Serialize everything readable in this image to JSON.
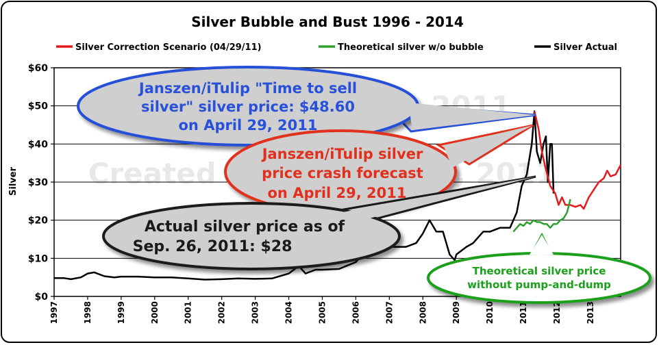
{
  "chart_data": {
    "type": "line",
    "title": "Silver Bubble and Bust 1996 - 2014",
    "ylabel": "Silver",
    "xlabel": "",
    "ylim": [
      0,
      60
    ],
    "xlim": [
      1997.0,
      2013.9
    ],
    "yticks": [
      {
        "value": 0,
        "label": "$0"
      },
      {
        "value": 10,
        "label": "$10"
      },
      {
        "value": 20,
        "label": "$20"
      },
      {
        "value": 30,
        "label": "$30"
      },
      {
        "value": 40,
        "label": "$40"
      },
      {
        "value": 50,
        "label": "$50"
      },
      {
        "value": 60,
        "label": "$60"
      }
    ],
    "xticks": [
      "1997",
      "1998",
      "1999",
      "2000",
      "2001",
      "2002",
      "2003",
      "2004",
      "2005",
      "2006",
      "2007",
      "2008",
      "2009",
      "2010",
      "2011",
      "2012",
      "2013"
    ],
    "grid": true,
    "legend_position": "top",
    "series": [
      {
        "name": "Silver Correction Scenario (04/29/11)",
        "color": "#e41a1c",
        "points": [
          [
            2011.33,
            48.6
          ],
          [
            2011.45,
            44
          ],
          [
            2011.55,
            38
          ],
          [
            2011.65,
            34
          ],
          [
            2011.8,
            29
          ],
          [
            2011.95,
            27
          ],
          [
            2012.05,
            24
          ],
          [
            2012.15,
            26
          ],
          [
            2012.25,
            24
          ],
          [
            2012.4,
            24
          ],
          [
            2012.55,
            23.5
          ],
          [
            2012.7,
            24
          ],
          [
            2012.8,
            23
          ],
          [
            2012.95,
            26
          ],
          [
            2013.1,
            28
          ],
          [
            2013.25,
            30
          ],
          [
            2013.4,
            31
          ],
          [
            2013.5,
            33
          ],
          [
            2013.6,
            31.5
          ],
          [
            2013.75,
            32
          ],
          [
            2013.9,
            34.5
          ]
        ]
      },
      {
        "name": "Theoretical silver w/o bubble",
        "color": "#2ca02c",
        "points": [
          [
            2010.7,
            17
          ],
          [
            2010.8,
            18
          ],
          [
            2010.9,
            19
          ],
          [
            2011.0,
            18.5
          ],
          [
            2011.1,
            19.5
          ],
          [
            2011.2,
            19
          ],
          [
            2011.3,
            20
          ],
          [
            2011.4,
            19.5
          ],
          [
            2011.5,
            19.5
          ],
          [
            2011.6,
            19
          ],
          [
            2011.7,
            19
          ],
          [
            2011.8,
            18
          ],
          [
            2011.9,
            19
          ],
          [
            2012.0,
            19
          ],
          [
            2012.1,
            20
          ],
          [
            2012.2,
            20.5
          ],
          [
            2012.3,
            22
          ],
          [
            2012.4,
            25.5
          ]
        ]
      },
      {
        "name": "Silver Actual",
        "color": "#000000",
        "points": [
          [
            1997.0,
            4.8
          ],
          [
            1997.3,
            4.8
          ],
          [
            1997.5,
            4.5
          ],
          [
            1997.8,
            5
          ],
          [
            1998.0,
            6
          ],
          [
            1998.2,
            6.3
          ],
          [
            1998.5,
            5.3
          ],
          [
            1998.8,
            5
          ],
          [
            1999.0,
            5.2
          ],
          [
            1999.5,
            5.2
          ],
          [
            2000.0,
            5
          ],
          [
            2000.5,
            5
          ],
          [
            2001.0,
            4.7
          ],
          [
            2001.5,
            4.4
          ],
          [
            2002.0,
            4.5
          ],
          [
            2002.5,
            4.7
          ],
          [
            2003.0,
            4.6
          ],
          [
            2003.5,
            4.7
          ],
          [
            2004.0,
            6
          ],
          [
            2004.3,
            8
          ],
          [
            2004.5,
            6
          ],
          [
            2004.8,
            7
          ],
          [
            2005.0,
            7
          ],
          [
            2005.5,
            7.2
          ],
          [
            2006.0,
            9
          ],
          [
            2006.3,
            12
          ],
          [
            2006.5,
            11
          ],
          [
            2006.8,
            12.5
          ],
          [
            2007.0,
            13
          ],
          [
            2007.5,
            13
          ],
          [
            2007.8,
            14
          ],
          [
            2008.0,
            16.5
          ],
          [
            2008.2,
            20
          ],
          [
            2008.4,
            17
          ],
          [
            2008.6,
            17
          ],
          [
            2008.8,
            11
          ],
          [
            2008.95,
            9.5
          ],
          [
            2009.0,
            11
          ],
          [
            2009.3,
            13
          ],
          [
            2009.5,
            14
          ],
          [
            2009.8,
            17
          ],
          [
            2010.0,
            17
          ],
          [
            2010.3,
            18
          ],
          [
            2010.6,
            18
          ],
          [
            2010.8,
            22
          ],
          [
            2010.95,
            29
          ],
          [
            2011.1,
            32
          ],
          [
            2011.25,
            40
          ],
          [
            2011.33,
            48.6
          ],
          [
            2011.4,
            38
          ],
          [
            2011.5,
            35
          ],
          [
            2011.6,
            40
          ],
          [
            2011.67,
            42
          ],
          [
            2011.73,
            30
          ],
          [
            2011.8,
            40
          ],
          [
            2011.85,
            40
          ],
          [
            2011.9,
            27
          ]
        ]
      }
    ]
  },
  "watermark": {
    "line1": "iTulip.com: 1996 - 2011",
    "line2": "Created September 26, 2011"
  },
  "annotations": {
    "blue": {
      "lines": [
        "Janszen/iTulip \"Time to sell",
        "silver\" silver price: $48.60",
        "on April 29, 2011"
      ],
      "color": "#2850d8",
      "fill": "#cfcfcf"
    },
    "red": {
      "lines": [
        "Janszen/iTulip silver",
        "price crash forecast",
        "on April 29, 2011"
      ],
      "color": "#e0301e",
      "fill": "#cfcfcf"
    },
    "black": {
      "lines": [
        "Actual silver price as of",
        "Sep. 26, 2011: $28"
      ],
      "color": "#1a1a1a",
      "fill": "#cfcfcf"
    },
    "green": {
      "lines": [
        "Theoretical silver price",
        "without pump-and-dump"
      ],
      "color": "#1aa01a",
      "fill": "#ffffff"
    }
  }
}
